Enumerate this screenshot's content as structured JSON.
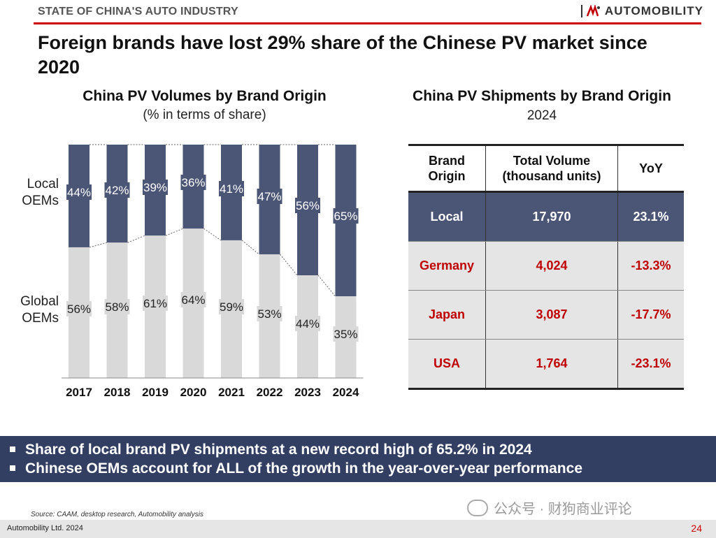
{
  "header": {
    "section_label": "STATE OF CHINA'S AUTO INDUSTRY",
    "brand_name": "AUTOMOBILITY",
    "accent_color": "#cc0000"
  },
  "title": "Foreign brands have lost 29% share of the Chinese PV market since 2020",
  "left_chart": {
    "title": "China PV Volumes by Brand Origin",
    "subtitle": "(% in terms of share)"
  },
  "chart_data": {
    "type": "bar",
    "stacked": true,
    "normalized": true,
    "categories": [
      "2017",
      "2018",
      "2019",
      "2020",
      "2021",
      "2022",
      "2023",
      "2024"
    ],
    "series": [
      {
        "name": "Global OEMs",
        "values": [
          56,
          58,
          61,
          64,
          59,
          53,
          44,
          35
        ],
        "labels": [
          "56%",
          "58%",
          "61%",
          "64%",
          "59%",
          "53%",
          "44%",
          "35%"
        ],
        "color": "#d9d9d9"
      },
      {
        "name": "Local OEMs",
        "values": [
          44,
          42,
          39,
          36,
          41,
          47,
          56,
          65
        ],
        "labels": [
          "44%",
          "42%",
          "39%",
          "36%",
          "41%",
          "47%",
          "56%",
          "65%"
        ],
        "color": "#4b5677"
      }
    ],
    "series_labels_text": {
      "local": [
        "Local",
        "OEMs"
      ],
      "global": [
        "Global",
        "OEMs"
      ]
    },
    "ylim": [
      0,
      100
    ],
    "legend": "left"
  },
  "right_table": {
    "title": "China PV Shipments by Brand Origin",
    "subtitle": "2024",
    "headers": [
      "Brand Origin",
      "Total Volume (thousand units)",
      "YoY"
    ],
    "rows": [
      {
        "origin": "Local",
        "volume": "17,970",
        "yoy": "23.1%",
        "kind": "local"
      },
      {
        "origin": "Germany",
        "volume": "4,024",
        "yoy": "-13.3%",
        "kind": "foreign"
      },
      {
        "origin": "Japan",
        "volume": "3,087",
        "yoy": "-17.7%",
        "kind": "foreign"
      },
      {
        "origin": "USA",
        "volume": "1,764",
        "yoy": "-23.1%",
        "kind": "foreign"
      }
    ]
  },
  "banner": {
    "items": [
      "Share of local brand PV shipments at a new record high of 65.2% in 2024",
      "Chinese OEMs account for ALL of the growth in the year-over-year performance"
    ]
  },
  "footer": {
    "source": "Source: CAAM, desktop research, Automobility analysis",
    "company": "Automobility Ltd. 2024",
    "page_number": "24",
    "watermark": "公众号 · 财狗商业评论"
  }
}
